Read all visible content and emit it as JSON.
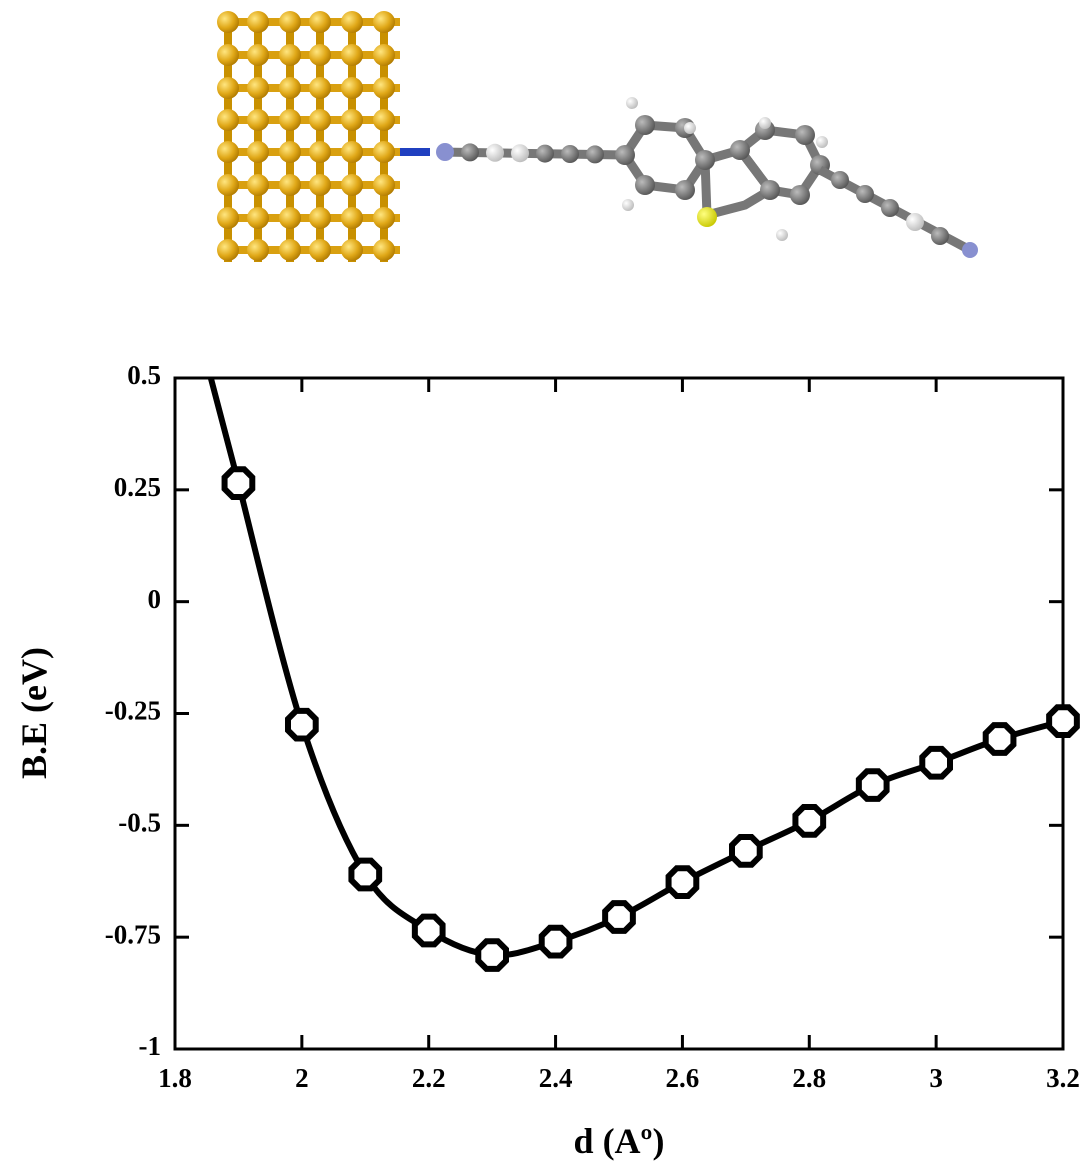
{
  "chart_data": {
    "type": "line",
    "xlabel": "d (Aº)",
    "ylabel": "B.E (eV)",
    "x": [
      1.9,
      2.0,
      2.1,
      2.2,
      2.3,
      2.4,
      2.5,
      2.6,
      2.7,
      2.8,
      2.9,
      3.0,
      3.1,
      3.2
    ],
    "series": [
      {
        "color": "#000000",
        "values": [
          0.265,
          -0.275,
          -0.61,
          -0.735,
          -0.79,
          -0.76,
          -0.705,
          -0.627,
          -0.557,
          -0.49,
          -0.41,
          -0.36,
          -0.307,
          -0.267
        ]
      }
    ],
    "xlim": [
      1.8,
      3.2
    ],
    "xticks": [
      1.8,
      2,
      2.2,
      2.4,
      2.6,
      2.8,
      3,
      3.2
    ],
    "ylim": [
      -1,
      0.5
    ],
    "yticks": [
      -1,
      -0.75,
      -0.5,
      -0.25,
      0,
      0.25,
      0.5
    ]
  }
}
